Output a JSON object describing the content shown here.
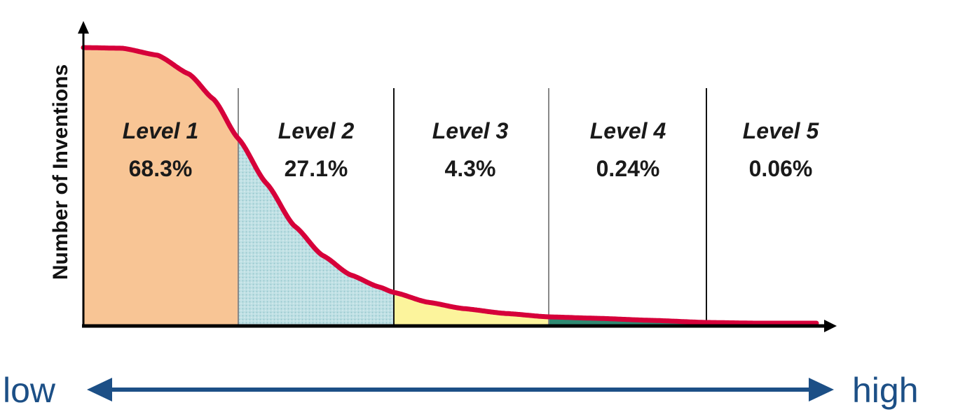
{
  "chart_data": {
    "type": "area",
    "ylabel": "Number of Inventions",
    "xlabel": "",
    "grid": false,
    "levels": [
      {
        "name": "Level 1",
        "percent": "68.3%",
        "value": 68.3,
        "color": "#f8c595"
      },
      {
        "name": "Level 2",
        "percent": "27.1%",
        "value": 27.1,
        "color": "#bfe0e4"
      },
      {
        "name": "Level 3",
        "percent": "4.3%",
        "value": 4.3,
        "color": "#fcf49c"
      },
      {
        "name": "Level 4",
        "percent": "0.24%",
        "value": 0.24,
        "color": "#2e8a72"
      },
      {
        "name": "Level 5",
        "percent": "0.06%",
        "value": 0.06,
        "color": "#f4c2c8"
      }
    ],
    "curve_color": "#d6003a"
  },
  "scale": {
    "low_label": "low",
    "high_label": "high",
    "color": "#1c4f86"
  }
}
